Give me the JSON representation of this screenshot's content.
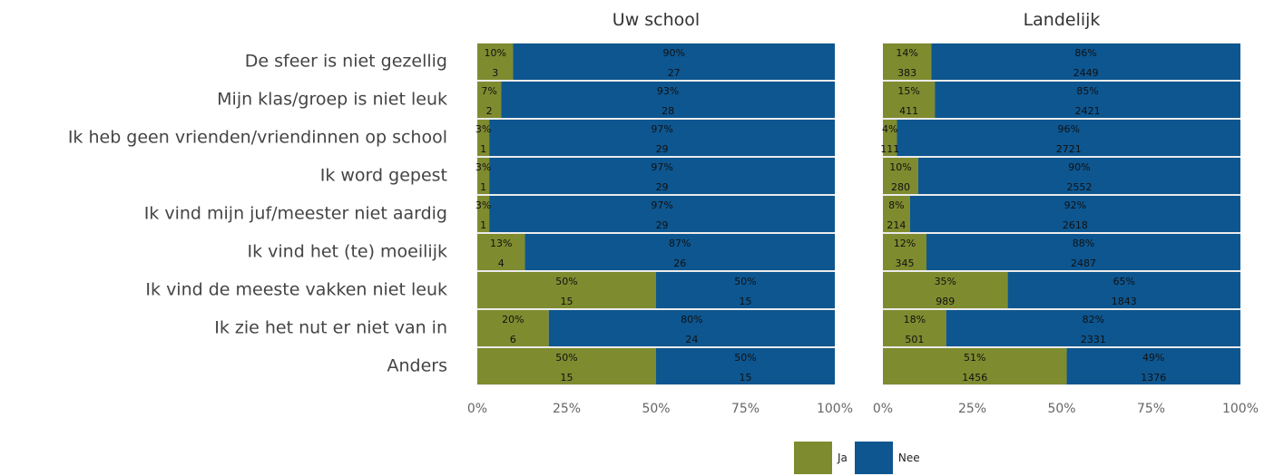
{
  "chart_data": {
    "type": "bar",
    "orientation": "horizontal",
    "stacked": "percent",
    "categories": [
      "De sfeer is niet gezellig",
      "Mijn klas/groep is niet leuk",
      "Ik heb geen vrienden/vriendinnen op school",
      "Ik word gepest",
      "Ik vind mijn juf/meester niet aardig",
      "Ik vind het (te) moeilijk",
      "Ik vind de meeste vakken niet leuk",
      "Ik zie het nut er niet van in",
      "Anders"
    ],
    "x_ticks": [
      "0%",
      "25%",
      "50%",
      "75%",
      "100%"
    ],
    "panels": [
      {
        "title": "Uw school",
        "series": [
          {
            "name": "Ja",
            "percent_labels": [
              "10%",
              "7%",
              "3%",
              "3%",
              "3%",
              "13%",
              "50%",
              "20%",
              "50%"
            ],
            "counts": [
              3,
              2,
              1,
              1,
              1,
              4,
              15,
              6,
              15
            ]
          },
          {
            "name": "Nee",
            "percent_labels": [
              "90%",
              "93%",
              "97%",
              "97%",
              "97%",
              "87%",
              "50%",
              "80%",
              "50%"
            ],
            "counts": [
              27,
              28,
              29,
              29,
              29,
              26,
              15,
              24,
              15
            ]
          }
        ]
      },
      {
        "title": "Landelijk",
        "series": [
          {
            "name": "Ja",
            "percent_labels": [
              "14%",
              "15%",
              "4%",
              "10%",
              "8%",
              "12%",
              "35%",
              "18%",
              "51%"
            ],
            "counts": [
              383,
              411,
              111,
              280,
              214,
              345,
              989,
              501,
              1456
            ]
          },
          {
            "name": "Nee",
            "percent_labels": [
              "86%",
              "85%",
              "96%",
              "90%",
              "92%",
              "88%",
              "65%",
              "82%",
              "49%"
            ],
            "counts": [
              2449,
              2421,
              2721,
              2552,
              2618,
              2487,
              1843,
              2331,
              1376
            ]
          }
        ]
      }
    ],
    "legend": {
      "position": "bottom",
      "items": [
        "Ja",
        "Nee"
      ]
    },
    "colors": {
      "Ja": "#7f8b2f",
      "Nee": "#0d5690"
    }
  }
}
